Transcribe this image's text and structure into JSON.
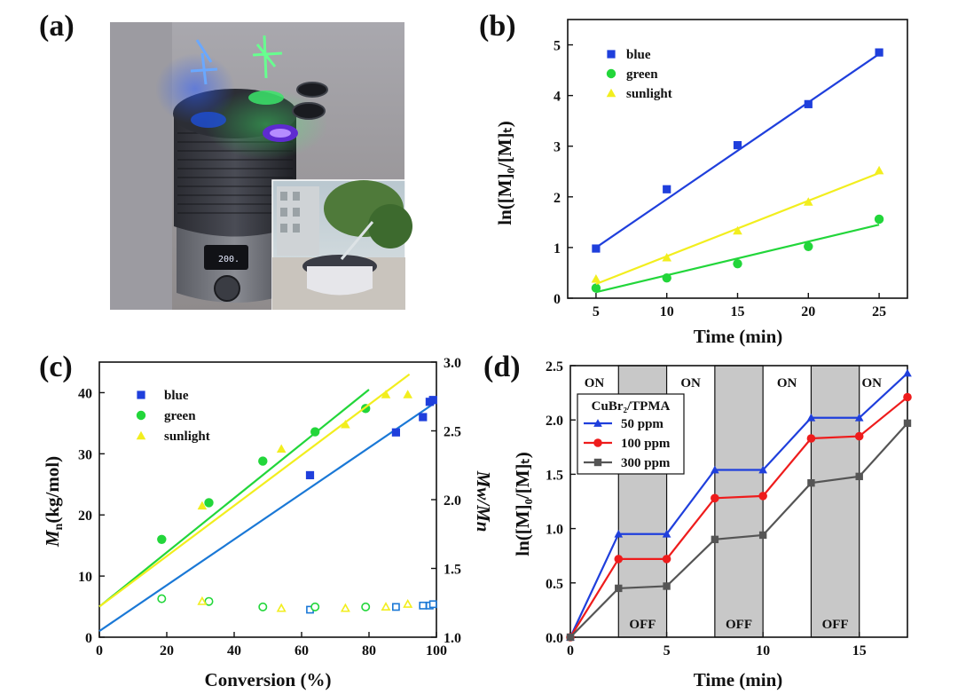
{
  "figure": {
    "photo_panel_label": "(a)",
    "photo_display": "200.",
    "photo_description_icon": "photoreactor-photo-icon"
  },
  "chart_data": [
    {
      "id": "b",
      "panel_label": "(b)",
      "type": "scatter",
      "xlabel": "Time (min)",
      "ylabel": "ln([M]₀/[M]ₜ)",
      "xlim": [
        3,
        27
      ],
      "ylim": [
        0,
        5.5
      ],
      "xticks": [
        5,
        10,
        15,
        20,
        25
      ],
      "yticks": [
        0,
        1,
        2,
        3,
        4,
        5
      ],
      "legend_position": "top-left",
      "series": [
        {
          "name": "blue",
          "marker": "square",
          "color": "#1f3fdc",
          "x": [
            5,
            10,
            15,
            20,
            25
          ],
          "y": [
            0.98,
            2.15,
            3.02,
            3.83,
            4.85
          ],
          "fit": [
            [
              5,
              1.0
            ],
            [
              25,
              4.82
            ]
          ]
        },
        {
          "name": "green",
          "marker": "circle",
          "color": "#22d63a",
          "x": [
            5,
            10,
            15,
            20,
            25
          ],
          "y": [
            0.2,
            0.4,
            0.68,
            1.02,
            1.56
          ],
          "fit": [
            [
              5,
              0.12
            ],
            [
              25,
              1.45
            ]
          ]
        },
        {
          "name": "sunlight",
          "marker": "triangle",
          "color": "#f2ee1e",
          "x": [
            5,
            10,
            15,
            20,
            25
          ],
          "y": [
            0.38,
            0.8,
            1.33,
            1.9,
            2.52
          ],
          "fit": [
            [
              5,
              0.28
            ],
            [
              25,
              2.47
            ]
          ]
        }
      ]
    },
    {
      "id": "c",
      "panel_label": "(c)",
      "type": "scatter",
      "xlabel": "Conversion (%)",
      "ylabel_main": "M",
      "ylabel_sub": "n",
      "ylabel_rest": "(kg/mol)",
      "y2label": "Mw/Mn",
      "xlim": [
        0,
        100
      ],
      "ylim": [
        0,
        45
      ],
      "y2lim": [
        1.0,
        3.0
      ],
      "xticks": [
        0,
        20,
        40,
        60,
        80,
        100
      ],
      "yticks": [
        0,
        10,
        20,
        30,
        40
      ],
      "y2ticks": [
        "1.0",
        "1.5",
        "2.0",
        "2.5",
        "3.0"
      ],
      "legend_position": "top-left",
      "series": [
        {
          "name": "blue",
          "marker": "square",
          "color": "#1f3fdc",
          "line_color": "#1a78d6",
          "x": [
            62.5,
            88,
            96,
            98,
            99
          ],
          "y": [
            26.5,
            33.5,
            36,
            38.5,
            38.8
          ],
          "dispersity": [
            1.2,
            1.22,
            1.23,
            1.23,
            1.24
          ],
          "fit": [
            [
              0,
              1
            ],
            [
              100,
              38.5
            ]
          ]
        },
        {
          "name": "green",
          "marker": "circle",
          "color": "#22d63a",
          "line_color": "#22d63a",
          "x": [
            18.5,
            32.5,
            48.5,
            64,
            79
          ],
          "y": [
            16,
            22,
            28.8,
            33.6,
            37.4
          ],
          "dispersity": [
            1.28,
            1.26,
            1.22,
            1.22,
            1.22
          ],
          "fit": [
            [
              0,
              5
            ],
            [
              80,
              40.5
            ]
          ]
        },
        {
          "name": "sunlight",
          "marker": "triangle",
          "color": "#f2ee1e",
          "line_color": "#f2ee1e",
          "x": [
            30.5,
            54,
            73,
            85,
            91.5
          ],
          "y": [
            21.5,
            30.8,
            34.8,
            39.7,
            39.7
          ],
          "dispersity": [
            1.26,
            1.21,
            1.21,
            1.22,
            1.24
          ],
          "fit": [
            [
              0,
              5
            ],
            [
              92,
              43
            ]
          ]
        }
      ]
    },
    {
      "id": "d",
      "panel_label": "(d)",
      "type": "line",
      "xlabel": "Time (min)",
      "ylabel": "ln([M]₀/[M]ₜ)",
      "xlim": [
        0,
        17.5
      ],
      "ylim": [
        0,
        2.5
      ],
      "xticks": [
        0,
        5,
        10,
        15
      ],
      "yticks": [
        "0.0",
        "0.5",
        "1.0",
        "1.5",
        "2.0",
        "2.5"
      ],
      "off_regions": [
        [
          2.5,
          5
        ],
        [
          7.5,
          10
        ],
        [
          12.5,
          15
        ]
      ],
      "on_labels": [
        "ON",
        "ON",
        "ON",
        "ON"
      ],
      "off_labels": [
        "OFF",
        "OFF",
        "OFF"
      ],
      "legend_title": "CuBr₂/TPMA",
      "legend_position": "upper-left",
      "series": [
        {
          "name": "50 ppm",
          "marker": "triangle",
          "color": "#1f3fdc",
          "x": [
            0,
            2.5,
            5,
            7.5,
            10,
            12.5,
            15,
            17.5
          ],
          "y": [
            0,
            0.95,
            0.95,
            1.54,
            1.54,
            2.02,
            2.02,
            2.43
          ]
        },
        {
          "name": "100 ppm",
          "marker": "circle",
          "color": "#ee1c1c",
          "x": [
            0,
            2.5,
            5,
            7.5,
            10,
            12.5,
            15,
            17.5
          ],
          "y": [
            0,
            0.72,
            0.72,
            1.28,
            1.3,
            1.83,
            1.85,
            2.21
          ]
        },
        {
          "name": "300 ppm",
          "marker": "square",
          "color": "#555555",
          "x": [
            0,
            2.5,
            5,
            7.5,
            10,
            12.5,
            15,
            17.5
          ],
          "y": [
            0,
            0.45,
            0.47,
            0.9,
            0.94,
            1.42,
            1.48,
            1.97
          ]
        }
      ]
    }
  ]
}
